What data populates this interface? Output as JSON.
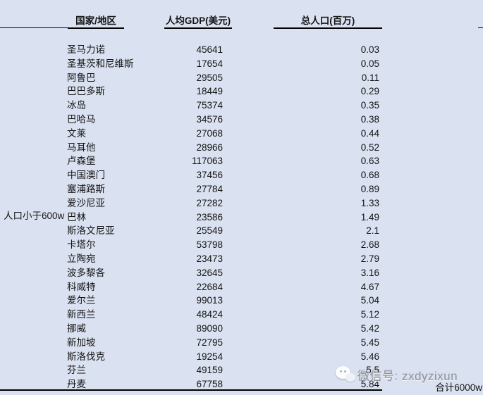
{
  "colors": {
    "background": "#dae1f0",
    "rule": "#000000",
    "watermark_text": "#8d929b"
  },
  "chart_data": {
    "type": "table",
    "columns": [
      "国家/地区",
      "人均GDP(美元)",
      "总人口(百万)"
    ],
    "group_label": "人口小于600w",
    "total_note": "合计6000w",
    "rows": [
      [
        "圣马力诺",
        "45641",
        "0.03"
      ],
      [
        "圣基茨和尼维斯",
        "17654",
        "0.05"
      ],
      [
        "阿鲁巴",
        "29505",
        "0.11"
      ],
      [
        "巴巴多斯",
        "18449",
        "0.29"
      ],
      [
        "冰岛",
        "75374",
        "0.35"
      ],
      [
        "巴哈马",
        "34576",
        "0.38"
      ],
      [
        "文莱",
        "27068",
        "0.44"
      ],
      [
        "马耳他",
        "28966",
        "0.52"
      ],
      [
        "卢森堡",
        "117063",
        "0.63"
      ],
      [
        "中国澳门",
        "37456",
        "0.68"
      ],
      [
        "塞浦路斯",
        "27784",
        "0.89"
      ],
      [
        "爱沙尼亚",
        "27282",
        "1.33"
      ],
      [
        "巴林",
        "23586",
        "1.49"
      ],
      [
        "斯洛文尼亚",
        "25549",
        "2.1"
      ],
      [
        "卡塔尔",
        "53798",
        "2.68"
      ],
      [
        "立陶宛",
        "23473",
        "2.79"
      ],
      [
        "波多黎各",
        "32645",
        "3.16"
      ],
      [
        "科威特",
        "22684",
        "4.67"
      ],
      [
        "爱尔兰",
        "99013",
        "5.04"
      ],
      [
        "新西兰",
        "48424",
        "5.12"
      ],
      [
        "挪威",
        "89090",
        "5.42"
      ],
      [
        "新加坡",
        "72795",
        "5.45"
      ],
      [
        "斯洛伐克",
        "19254",
        "5.46"
      ],
      [
        "芬兰",
        "49159",
        "5.5"
      ],
      [
        "丹麦",
        "67758",
        "5.84"
      ]
    ]
  },
  "watermark": {
    "icon": "wechat-icon",
    "text": "微信号: zxdyzixun"
  }
}
